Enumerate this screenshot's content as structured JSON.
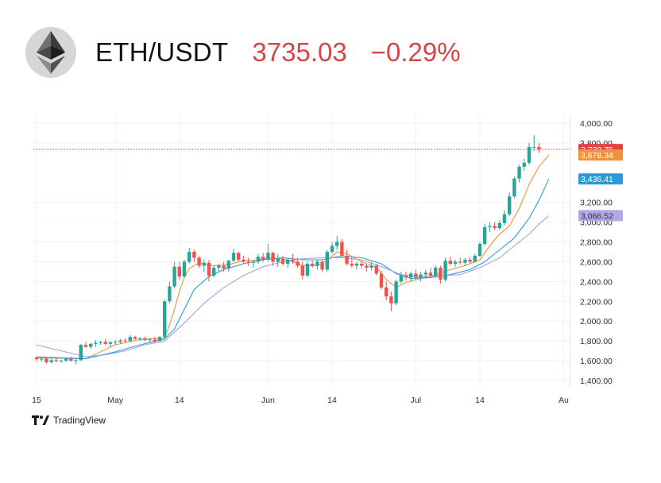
{
  "header": {
    "pair": "ETH/USDT",
    "price": "3735.03",
    "change": "−0.29%",
    "logo_icon": "ethereum-logo-icon",
    "accent_color": "#d64545"
  },
  "brand": {
    "name": "TradingView",
    "icon": "tradingview-logo-icon"
  },
  "chart_data": {
    "type": "candlestick",
    "title": "",
    "ylim": [
      1400,
      4000
    ],
    "y_ticks": [
      {
        "value": 4000,
        "label": "4,000.00"
      },
      {
        "value": 3800,
        "label": "3,800.00"
      },
      {
        "value": 3200,
        "label": "3,200.00"
      },
      {
        "value": 3000,
        "label": "3,000.00"
      },
      {
        "value": 2800,
        "label": "2,800.00"
      },
      {
        "value": 2600,
        "label": "2,600.00"
      },
      {
        "value": 2400,
        "label": "2,400.00"
      },
      {
        "value": 2200,
        "label": "2,200.00"
      },
      {
        "value": 2000,
        "label": "2,000.00"
      },
      {
        "value": 1800,
        "label": "1,800.00"
      },
      {
        "value": 1600,
        "label": "1,600.00"
      },
      {
        "value": 1400,
        "label": "1,400.00"
      }
    ],
    "x_ticks": [
      {
        "day": 0,
        "label": "15"
      },
      {
        "day": 16,
        "label": "May"
      },
      {
        "day": 29,
        "label": "14"
      },
      {
        "day": 47,
        "label": "Jun"
      },
      {
        "day": 60,
        "label": "14"
      },
      {
        "day": 77,
        "label": "Jul"
      },
      {
        "day": 90,
        "label": "14"
      },
      {
        "day": 107,
        "label": "Au"
      }
    ],
    "price_line": {
      "value": 3733.75,
      "color": "#d64545"
    },
    "value_badges": [
      {
        "value": 3733.75,
        "label": "3,733.75",
        "color": "#e04444"
      },
      {
        "value": 3678.34,
        "label": "3,678.34",
        "color": "#f0933a"
      },
      {
        "value": 3436.41,
        "label": "3,436.41",
        "color": "#2a9bd6"
      },
      {
        "value": 3066.52,
        "label": "3,066.52",
        "color": "#b2a8e8",
        "text_color": "#333333"
      }
    ],
    "candles": [
      [
        1630,
        1645,
        1600,
        1615
      ],
      [
        1615,
        1630,
        1590,
        1620
      ],
      [
        1620,
        1630,
        1570,
        1585
      ],
      [
        1585,
        1620,
        1575,
        1605
      ],
      [
        1605,
        1625,
        1585,
        1595
      ],
      [
        1595,
        1610,
        1580,
        1600
      ],
      [
        1600,
        1630,
        1590,
        1620
      ],
      [
        1620,
        1640,
        1590,
        1600
      ],
      [
        1600,
        1620,
        1560,
        1605
      ],
      [
        1605,
        1770,
        1600,
        1760
      ],
      [
        1760,
        1790,
        1730,
        1740
      ],
      [
        1740,
        1780,
        1720,
        1770
      ],
      [
        1770,
        1810,
        1740,
        1780
      ],
      [
        1780,
        1800,
        1760,
        1790
      ],
      [
        1790,
        1820,
        1760,
        1770
      ],
      [
        1770,
        1800,
        1740,
        1785
      ],
      [
        1785,
        1810,
        1760,
        1790
      ],
      [
        1790,
        1820,
        1770,
        1805
      ],
      [
        1805,
        1830,
        1780,
        1800
      ],
      [
        1800,
        1860,
        1790,
        1840
      ],
      [
        1840,
        1850,
        1810,
        1820
      ],
      [
        1820,
        1840,
        1800,
        1825
      ],
      [
        1825,
        1845,
        1795,
        1810
      ],
      [
        1810,
        1830,
        1790,
        1815
      ],
      [
        1815,
        1840,
        1780,
        1800
      ],
      [
        1800,
        1850,
        1790,
        1840
      ],
      [
        1840,
        2220,
        1830,
        2200
      ],
      [
        2200,
        2400,
        2180,
        2350
      ],
      [
        2350,
        2600,
        2330,
        2550
      ],
      [
        2550,
        2600,
        2420,
        2450
      ],
      [
        2450,
        2620,
        2440,
        2600
      ],
      [
        2600,
        2740,
        2580,
        2700
      ],
      [
        2700,
        2720,
        2600,
        2640
      ],
      [
        2640,
        2660,
        2540,
        2560
      ],
      [
        2560,
        2620,
        2500,
        2590
      ],
      [
        2590,
        2620,
        2400,
        2460
      ],
      [
        2460,
        2560,
        2440,
        2540
      ],
      [
        2540,
        2580,
        2500,
        2560
      ],
      [
        2560,
        2600,
        2500,
        2530
      ],
      [
        2530,
        2620,
        2500,
        2610
      ],
      [
        2610,
        2730,
        2600,
        2690
      ],
      [
        2690,
        2700,
        2600,
        2620
      ],
      [
        2620,
        2660,
        2580,
        2600
      ],
      [
        2600,
        2640,
        2560,
        2590
      ],
      [
        2590,
        2620,
        2540,
        2600
      ],
      [
        2600,
        2680,
        2580,
        2650
      ],
      [
        2650,
        2690,
        2600,
        2620
      ],
      [
        2620,
        2780,
        2600,
        2690
      ],
      [
        2690,
        2700,
        2560,
        2600
      ],
      [
        2600,
        2680,
        2550,
        2630
      ],
      [
        2630,
        2660,
        2560,
        2580
      ],
      [
        2580,
        2640,
        2540,
        2620
      ],
      [
        2620,
        2680,
        2580,
        2600
      ],
      [
        2600,
        2640,
        2540,
        2560
      ],
      [
        2560,
        2600,
        2420,
        2460
      ],
      [
        2460,
        2600,
        2440,
        2580
      ],
      [
        2580,
        2610,
        2540,
        2560
      ],
      [
        2560,
        2620,
        2520,
        2600
      ],
      [
        2600,
        2620,
        2500,
        2520
      ],
      [
        2520,
        2720,
        2500,
        2700
      ],
      [
        2700,
        2800,
        2680,
        2760
      ],
      [
        2760,
        2860,
        2720,
        2800
      ],
      [
        2800,
        2830,
        2640,
        2660
      ],
      [
        2660,
        2720,
        2560,
        2580
      ],
      [
        2580,
        2640,
        2540,
        2560
      ],
      [
        2560,
        2600,
        2520,
        2580
      ],
      [
        2580,
        2610,
        2530,
        2560
      ],
      [
        2560,
        2580,
        2500,
        2540
      ],
      [
        2540,
        2600,
        2510,
        2560
      ],
      [
        2560,
        2580,
        2460,
        2480
      ],
      [
        2480,
        2510,
        2320,
        2340
      ],
      [
        2340,
        2400,
        2210,
        2250
      ],
      [
        2250,
        2300,
        2100,
        2180
      ],
      [
        2180,
        2420,
        2160,
        2400
      ],
      [
        2400,
        2500,
        2380,
        2460
      ],
      [
        2460,
        2500,
        2410,
        2440
      ],
      [
        2440,
        2500,
        2400,
        2480
      ],
      [
        2480,
        2520,
        2420,
        2440
      ],
      [
        2440,
        2500,
        2400,
        2470
      ],
      [
        2470,
        2520,
        2430,
        2490
      ],
      [
        2490,
        2540,
        2440,
        2460
      ],
      [
        2460,
        2560,
        2440,
        2540
      ],
      [
        2540,
        2560,
        2380,
        2420
      ],
      [
        2420,
        2640,
        2400,
        2610
      ],
      [
        2610,
        2650,
        2560,
        2580
      ],
      [
        2580,
        2620,
        2550,
        2600
      ],
      [
        2600,
        2640,
        2570,
        2590
      ],
      [
        2590,
        2640,
        2560,
        2620
      ],
      [
        2620,
        2650,
        2580,
        2600
      ],
      [
        2600,
        2680,
        2590,
        2660
      ],
      [
        2660,
        2800,
        2650,
        2780
      ],
      [
        2780,
        2980,
        2760,
        2950
      ],
      [
        2950,
        3000,
        2900,
        2960
      ],
      [
        2960,
        3000,
        2920,
        2940
      ],
      [
        2940,
        3020,
        2920,
        2990
      ],
      [
        2990,
        3120,
        2970,
        3080
      ],
      [
        3080,
        3300,
        3060,
        3260
      ],
      [
        3260,
        3460,
        3240,
        3440
      ],
      [
        3440,
        3580,
        3400,
        3560
      ],
      [
        3560,
        3640,
        3520,
        3600
      ],
      [
        3600,
        3800,
        3580,
        3760
      ],
      [
        3760,
        3880,
        3720,
        3760
      ],
      [
        3760,
        3800,
        3700,
        3734
      ]
    ],
    "series": [
      {
        "name": "",
        "color": "#f0933a",
        "values": [
          [
            0,
            1640
          ],
          [
            10,
            1620
          ],
          [
            16,
            1760
          ],
          [
            21,
            1815
          ],
          [
            26,
            1830
          ],
          [
            27,
            1960
          ],
          [
            28,
            2120
          ],
          [
            29,
            2300
          ],
          [
            30,
            2440
          ],
          [
            31,
            2530
          ],
          [
            33,
            2590
          ],
          [
            36,
            2560
          ],
          [
            39,
            2570
          ],
          [
            42,
            2610
          ],
          [
            45,
            2620
          ],
          [
            48,
            2640
          ],
          [
            51,
            2620
          ],
          [
            54,
            2560
          ],
          [
            57,
            2560
          ],
          [
            59,
            2610
          ],
          [
            61,
            2700
          ],
          [
            63,
            2680
          ],
          [
            66,
            2600
          ],
          [
            69,
            2540
          ],
          [
            71,
            2420
          ],
          [
            73,
            2340
          ],
          [
            75,
            2390
          ],
          [
            78,
            2430
          ],
          [
            81,
            2470
          ],
          [
            84,
            2520
          ],
          [
            87,
            2560
          ],
          [
            90,
            2620
          ],
          [
            92,
            2760
          ],
          [
            94,
            2880
          ],
          [
            96,
            2960
          ],
          [
            98,
            3140
          ],
          [
            100,
            3380
          ],
          [
            102,
            3560
          ],
          [
            104,
            3678
          ]
        ]
      },
      {
        "name": "",
        "color": "#2a9bd6",
        "values": [
          [
            0,
            1630
          ],
          [
            10,
            1620
          ],
          [
            16,
            1690
          ],
          [
            21,
            1760
          ],
          [
            26,
            1820
          ],
          [
            28,
            1920
          ],
          [
            30,
            2120
          ],
          [
            32,
            2320
          ],
          [
            35,
            2450
          ],
          [
            38,
            2520
          ],
          [
            42,
            2580
          ],
          [
            46,
            2620
          ],
          [
            50,
            2640
          ],
          [
            54,
            2620
          ],
          [
            58,
            2620
          ],
          [
            62,
            2660
          ],
          [
            66,
            2640
          ],
          [
            70,
            2580
          ],
          [
            73,
            2480
          ],
          [
            76,
            2430
          ],
          [
            80,
            2440
          ],
          [
            84,
            2470
          ],
          [
            88,
            2520
          ],
          [
            91,
            2600
          ],
          [
            94,
            2720
          ],
          [
            97,
            2840
          ],
          [
            100,
            3040
          ],
          [
            102,
            3220
          ],
          [
            104,
            3436
          ]
        ]
      },
      {
        "name": "",
        "color": "#a8a0dc",
        "values": [
          [
            0,
            1760
          ],
          [
            5,
            1700
          ],
          [
            10,
            1640
          ],
          [
            14,
            1660
          ],
          [
            18,
            1700
          ],
          [
            22,
            1760
          ],
          [
            26,
            1800
          ],
          [
            30,
            1980
          ],
          [
            34,
            2180
          ],
          [
            38,
            2340
          ],
          [
            42,
            2460
          ],
          [
            46,
            2550
          ],
          [
            50,
            2600
          ],
          [
            54,
            2630
          ],
          [
            58,
            2640
          ],
          [
            62,
            2640
          ],
          [
            66,
            2620
          ],
          [
            70,
            2550
          ],
          [
            74,
            2470
          ],
          [
            78,
            2450
          ],
          [
            82,
            2460
          ],
          [
            86,
            2470
          ],
          [
            90,
            2540
          ],
          [
            94,
            2640
          ],
          [
            97,
            2760
          ],
          [
            100,
            2880
          ],
          [
            102,
            2980
          ],
          [
            104,
            3066
          ]
        ]
      }
    ]
  }
}
